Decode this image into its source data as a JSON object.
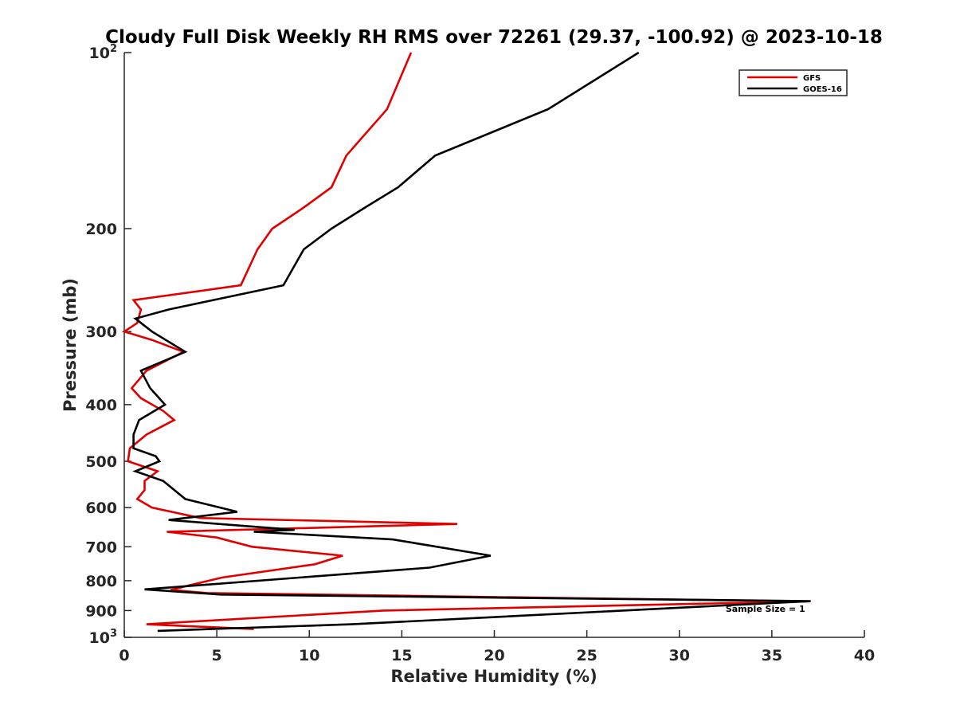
{
  "chart_data": {
    "type": "line",
    "title": "Cloudy Full Disk Weekly RH RMS over 72261 (29.37, -100.92) @ 2023-10-18",
    "xlabel": "Relative Humidity (%)",
    "ylabel": "Pressure (mb)",
    "xlim": [
      0,
      40
    ],
    "ylim": [
      100,
      1000
    ],
    "y_scale": "log",
    "y_reversed": true,
    "grid": false,
    "legend_position": "top-right",
    "x_ticks": [
      "0",
      "5",
      "10",
      "15",
      "20",
      "25",
      "30",
      "35",
      "40"
    ],
    "y_ticks": [
      {
        "value": 100,
        "base": "10",
        "exp": "2"
      },
      {
        "value": 200,
        "label": "200"
      },
      {
        "value": 300,
        "label": "300"
      },
      {
        "value": 400,
        "label": "400"
      },
      {
        "value": 500,
        "label": "500"
      },
      {
        "value": 600,
        "label": "600"
      },
      {
        "value": 700,
        "label": "700"
      },
      {
        "value": 800,
        "label": "800"
      },
      {
        "value": 900,
        "label": "900"
      },
      {
        "value": 1000,
        "base": "10",
        "exp": "3"
      }
    ],
    "series": [
      {
        "name": "GFS",
        "color": "#e00000",
        "points": [
          [
            15.5,
            100
          ],
          [
            14.2,
            125
          ],
          [
            12.0,
            150
          ],
          [
            11.2,
            170
          ],
          [
            9.6,
            185
          ],
          [
            8.0,
            200
          ],
          [
            7.2,
            217
          ],
          [
            6.3,
            250
          ],
          [
            0.5,
            265
          ],
          [
            0.9,
            275
          ],
          [
            0.7,
            290
          ],
          [
            0.0,
            300
          ],
          [
            1.5,
            310
          ],
          [
            3.2,
            325
          ],
          [
            1.2,
            350
          ],
          [
            0.4,
            375
          ],
          [
            0.9,
            390
          ],
          [
            2.1,
            410
          ],
          [
            2.7,
            425
          ],
          [
            1.2,
            450
          ],
          [
            0.3,
            475
          ],
          [
            0.2,
            500
          ],
          [
            1.8,
            520
          ],
          [
            1.1,
            540
          ],
          [
            1.1,
            560
          ],
          [
            0.7,
            580
          ],
          [
            1.5,
            600
          ],
          [
            4.1,
            625
          ],
          [
            18.0,
            640
          ],
          [
            2.3,
            660
          ],
          [
            5.0,
            675
          ],
          [
            6.9,
            700
          ],
          [
            11.8,
            725
          ],
          [
            10.3,
            750
          ],
          [
            5.3,
            790
          ],
          [
            3.5,
            815
          ],
          [
            2.5,
            830
          ],
          [
            4.5,
            840
          ],
          [
            37.0,
            868
          ],
          [
            14.0,
            900
          ],
          [
            1.2,
            950
          ],
          [
            7.0,
            968
          ]
        ]
      },
      {
        "name": "GOES-16",
        "color": "#000000",
        "points": [
          [
            27.8,
            100
          ],
          [
            22.9,
            125
          ],
          [
            16.8,
            150
          ],
          [
            14.8,
            170
          ],
          [
            12.9,
            185
          ],
          [
            11.2,
            200
          ],
          [
            9.7,
            217
          ],
          [
            8.6,
            250
          ],
          [
            2.4,
            275
          ],
          [
            0.6,
            285
          ],
          [
            1.5,
            300
          ],
          [
            3.3,
            325
          ],
          [
            0.9,
            350
          ],
          [
            1.4,
            375
          ],
          [
            2.2,
            400
          ],
          [
            0.8,
            425
          ],
          [
            0.5,
            450
          ],
          [
            0.5,
            475
          ],
          [
            1.7,
            490
          ],
          [
            1.9,
            500
          ],
          [
            0.6,
            520
          ],
          [
            2.1,
            540
          ],
          [
            3.3,
            580
          ],
          [
            6.1,
            610
          ],
          [
            2.4,
            630
          ],
          [
            9.2,
            655
          ],
          [
            7.0,
            660
          ],
          [
            14.5,
            680
          ],
          [
            15.7,
            690
          ],
          [
            19.8,
            725
          ],
          [
            16.5,
            760
          ],
          [
            1.1,
            828
          ],
          [
            5.2,
            845
          ],
          [
            37.1,
            867
          ],
          [
            12.3,
            950
          ],
          [
            1.8,
            975
          ]
        ]
      }
    ],
    "annotations": [
      {
        "text": "Sample Size = 1",
        "x": 32.5,
        "y": 905
      }
    ]
  }
}
